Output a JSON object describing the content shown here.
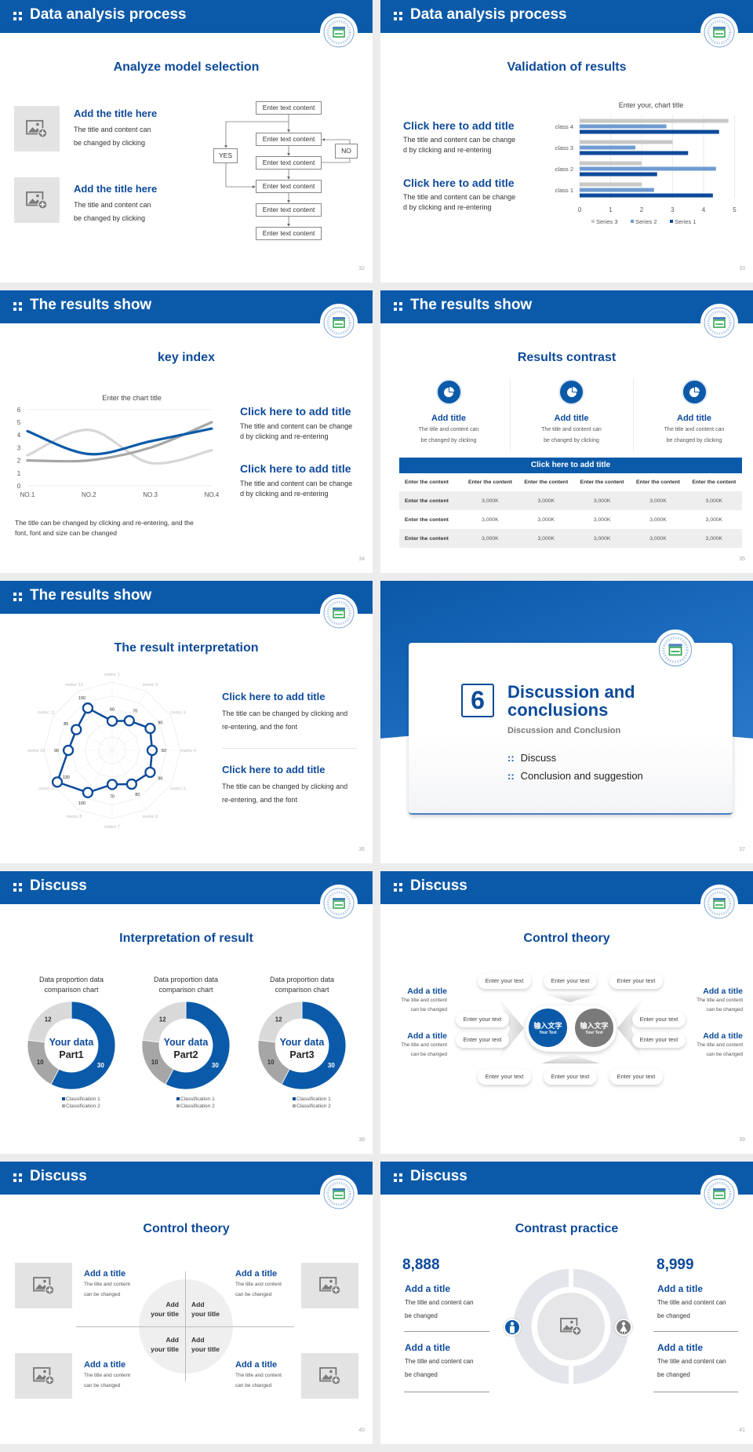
{
  "colors": {
    "brand_blue": "#0b5aa9",
    "heading_blue": "#0d4a9a",
    "gray": "#a6a6a6",
    "light_gray": "#d9d9d9",
    "page_bg": "#ececec"
  },
  "slides": [
    {
      "header": "Data analysis process",
      "heading": "Analyze model selection",
      "page": "32",
      "items": [
        {
          "title": "Add the title here",
          "lines": [
            "The title and content can",
            "be changed by clicking"
          ]
        },
        {
          "title": "Add the title here",
          "lines": [
            "The title and content can",
            "be changed by clicking"
          ]
        }
      ],
      "flow": {
        "boxes": [
          "Enter text content",
          "Enter text content",
          "Enter text content",
          "Enter text content",
          "Enter text content",
          "Enter text content"
        ],
        "yes": "YES",
        "no": "NO"
      }
    },
    {
      "header": "Data analysis process",
      "heading": "Validation of results",
      "page": "33",
      "items": [
        {
          "title": "Click here to add title",
          "lines": [
            "The title and content can be change",
            "d by clicking and re-entering"
          ]
        },
        {
          "title": "Click here to add title",
          "lines": [
            "The title and content can be change",
            "d by clicking and re-entering"
          ]
        }
      ]
    },
    {
      "header": "The results show",
      "heading": "key index",
      "page": "34",
      "items": [
        {
          "title": "Click here to add title",
          "lines": [
            "The title and content can be change",
            "d by clicking and re-entering"
          ]
        },
        {
          "title": "Click here to add title",
          "lines": [
            "The title and content can be change",
            "d by clicking and re-entering"
          ]
        }
      ],
      "note": [
        "The title can be changed by clicking and re-entering, and the",
        "font, font and size can be changed"
      ]
    },
    {
      "header": "The results show",
      "heading": "Results contrast",
      "page": "35",
      "cols": [
        {
          "title": "Add title",
          "lines": [
            "The title and content can",
            "be changed by clicking"
          ],
          "icon": "pie-chart-icon"
        },
        {
          "title": "Add title",
          "lines": [
            "The title and content can",
            "be changed by clicking"
          ],
          "icon": "pie-chart-icon"
        },
        {
          "title": "Add title",
          "lines": [
            "The title and content can",
            "be changed by clicking"
          ],
          "icon": "pie-chart-icon"
        }
      ],
      "table": {
        "title": "Click here to add title",
        "header": [
          "Enter the content",
          "Enter the content",
          "Enter the content",
          "Enter the content",
          "Enter the content",
          "Enter the content"
        ],
        "rows": [
          [
            "Enter the content",
            "3,000K",
            "3,000K",
            "3,000K",
            "3,000K",
            "3,000K"
          ],
          [
            "Enter the content",
            "3,000K",
            "3,000K",
            "3,000K",
            "3,000K",
            "3,000K"
          ],
          [
            "Enter the content",
            "3,000K",
            "3,000K",
            "3,000K",
            "3,000K",
            "3,000K"
          ]
        ]
      }
    },
    {
      "header": "The results show",
      "heading": "The result interpretation",
      "page": "36",
      "items": [
        {
          "title": "Click here to add  title",
          "lines": [
            "The title can be changed by clicking and",
            "re-entering, and the font"
          ]
        },
        {
          "title": "Click here to add  title",
          "lines": [
            "The title can be changed by clicking and",
            "re-entering, and the font"
          ]
        }
      ]
    },
    {
      "section_number": "6",
      "title_lines": [
        "Discussion and",
        "conclusions"
      ],
      "subtitle": "Discussion and Conclusion",
      "bullets": [
        "Discuss",
        "Conclusion and suggestion"
      ],
      "page": "37"
    },
    {
      "header": "Discuss",
      "heading": "Interpretation of result",
      "page": "38",
      "donuts": [
        {
          "center_top": "Your data",
          "center_bottom": "Part1"
        },
        {
          "center_top": "Your data",
          "center_bottom": "Part2"
        },
        {
          "center_top": "Your data",
          "center_bottom": "Part3"
        }
      ]
    },
    {
      "header": "Discuss",
      "heading": "Control theory",
      "page": "39",
      "side_items": [
        {
          "title": "Add a title",
          "lines": [
            "The title and content",
            "can be changed"
          ]
        },
        {
          "title": "Add a title",
          "lines": [
            "The title and content",
            "can be changed"
          ]
        },
        {
          "title": "Add a title",
          "lines": [
            "The title and content",
            "can be changed"
          ]
        },
        {
          "title": "Add a title",
          "lines": [
            "The title and content",
            "can be changed"
          ]
        }
      ],
      "pills": [
        "Enter your text",
        "Enter your text",
        "Enter your text",
        "Enter your text",
        "Enter your text",
        "Enter your text",
        "Enter your text",
        "Enter your text",
        "Enter your text",
        "Enter your text"
      ],
      "circles": [
        {
          "zh": "输入文字",
          "en": "Your Text"
        },
        {
          "zh": "输入文字",
          "en": "Your Text"
        }
      ]
    },
    {
      "header": "Discuss",
      "heading": "Control theory",
      "page": "40",
      "items": [
        {
          "title": "Add a title",
          "lines": [
            "The title and content",
            "can be changed"
          ]
        },
        {
          "title": "Add a title",
          "lines": [
            "The title and content",
            "can be changed"
          ]
        },
        {
          "title": "Add a title",
          "lines": [
            "The title and content",
            "can be changed"
          ]
        },
        {
          "title": "Add a title",
          "lines": [
            "The title and content",
            "can be changed"
          ]
        }
      ],
      "quadrants": [
        [
          "Add",
          "your title"
        ],
        [
          "Add",
          "your title"
        ],
        [
          "Add",
          "your title"
        ],
        [
          "Add",
          "your title"
        ]
      ]
    },
    {
      "header": "Discuss",
      "heading": "Contrast practice",
      "page": "41",
      "numbers": [
        "8,888",
        "8,999"
      ],
      "items": [
        {
          "title": "Add a title",
          "lines": [
            "The title and content can",
            "be changed"
          ]
        },
        {
          "title": "Add a title",
          "lines": [
            "The title and content can",
            "be changed"
          ]
        },
        {
          "title": "Add a title",
          "lines": [
            "The title and content can",
            "be changed"
          ]
        },
        {
          "title": "Add a title",
          "lines": [
            "The title and content can",
            "be changed"
          ]
        }
      ],
      "icons": [
        "male-icon",
        "female-icon"
      ]
    }
  ],
  "chart_data": [
    {
      "type": "bar",
      "orientation": "horizontal",
      "title": "Enter your, chart title",
      "categories": [
        "class 1",
        "class 2",
        "class 3",
        "class 4"
      ],
      "series": [
        {
          "name": "Series 1",
          "color": "#0d4a9a",
          "values": [
            4.3,
            2.5,
            3.5,
            4.5
          ]
        },
        {
          "name": "Series 2",
          "color": "#6f9bd1",
          "values": [
            2.4,
            4.4,
            1.8,
            2.8
          ]
        },
        {
          "name": "Series 3",
          "color": "#c8c8c8",
          "values": [
            2,
            2,
            3,
            4.8
          ]
        }
      ],
      "xlim": [
        0,
        5
      ],
      "xticks": [
        "0",
        "1",
        "2",
        "3",
        "4",
        "5"
      ],
      "grid": true,
      "legend": "bottom",
      "legend_order": [
        "Series 3",
        "Series 2",
        "Series 1"
      ]
    },
    {
      "type": "line",
      "smooth": true,
      "title": "Enter the chart title",
      "categories": [
        "NO.1",
        "NO.2",
        "NO.3",
        "NO.4"
      ],
      "series": [
        {
          "color": "#0b5aa9",
          "values": [
            4.3,
            2.5,
            3.5,
            4.5
          ]
        },
        {
          "color": "#d6d6d6",
          "values": [
            2.4,
            4.4,
            1.8,
            2.8
          ]
        },
        {
          "color": "#a6a6a6",
          "values": [
            2,
            2,
            3,
            5
          ]
        }
      ],
      "ylim": [
        0,
        6
      ],
      "yticks": [
        "0",
        "1",
        "2",
        "3",
        "4",
        "5",
        "6"
      ],
      "legend": "none"
    },
    {
      "type": "radar",
      "categories": [
        "metric 1",
        "metric 2",
        "metric 3",
        "metric 4",
        "metric 5",
        "metric 6",
        "metric 7",
        "metric 8",
        "metric 9",
        "metric 10",
        "metric 11",
        "metric 12"
      ],
      "values": [
        60,
        70,
        90,
        82,
        90,
        80,
        70,
        100,
        130,
        90,
        85,
        100
      ],
      "value_labels": [
        "60",
        "70",
        "90",
        "82",
        "90",
        "80",
        "70",
        "100",
        "130",
        "90",
        "85",
        "100"
      ],
      "rmax": 140
    },
    {
      "type": "pie",
      "donut": true,
      "title_lines": [
        "Data proportion data",
        "comparison chart"
      ],
      "slices": [
        {
          "label": "Classification 1",
          "value": 30,
          "color": "#0b5aa9"
        },
        {
          "label": "Classification 2",
          "value": 10,
          "color": "#a6a6a6"
        },
        {
          "label": "",
          "value": 12,
          "color": "#d9d9d9"
        }
      ],
      "legend": "bottom",
      "legend_labels": [
        "Classification 1",
        "Classification 2"
      ]
    },
    {
      "type": "pie",
      "donut": true,
      "title_lines": [
        "Data proportion data",
        "comparison chart"
      ],
      "slices": [
        {
          "label": "Classification 1",
          "value": 30,
          "color": "#0b5aa9"
        },
        {
          "label": "Classification 2",
          "value": 10,
          "color": "#a6a6a6"
        },
        {
          "label": "",
          "value": 12,
          "color": "#d9d9d9"
        }
      ],
      "legend": "bottom",
      "legend_labels": [
        "Classification 1",
        "Classification 2"
      ]
    },
    {
      "type": "pie",
      "donut": true,
      "title_lines": [
        "Data proportion data",
        "comparison chart"
      ],
      "slices": [
        {
          "label": "Classification 1",
          "value": 30,
          "color": "#0b5aa9"
        },
        {
          "label": "Classification 2",
          "value": 10,
          "color": "#a6a6a6"
        },
        {
          "label": "",
          "value": 12,
          "color": "#d9d9d9"
        }
      ],
      "legend": "bottom",
      "legend_labels": [
        "Classification 1",
        "Classification 2"
      ]
    }
  ]
}
